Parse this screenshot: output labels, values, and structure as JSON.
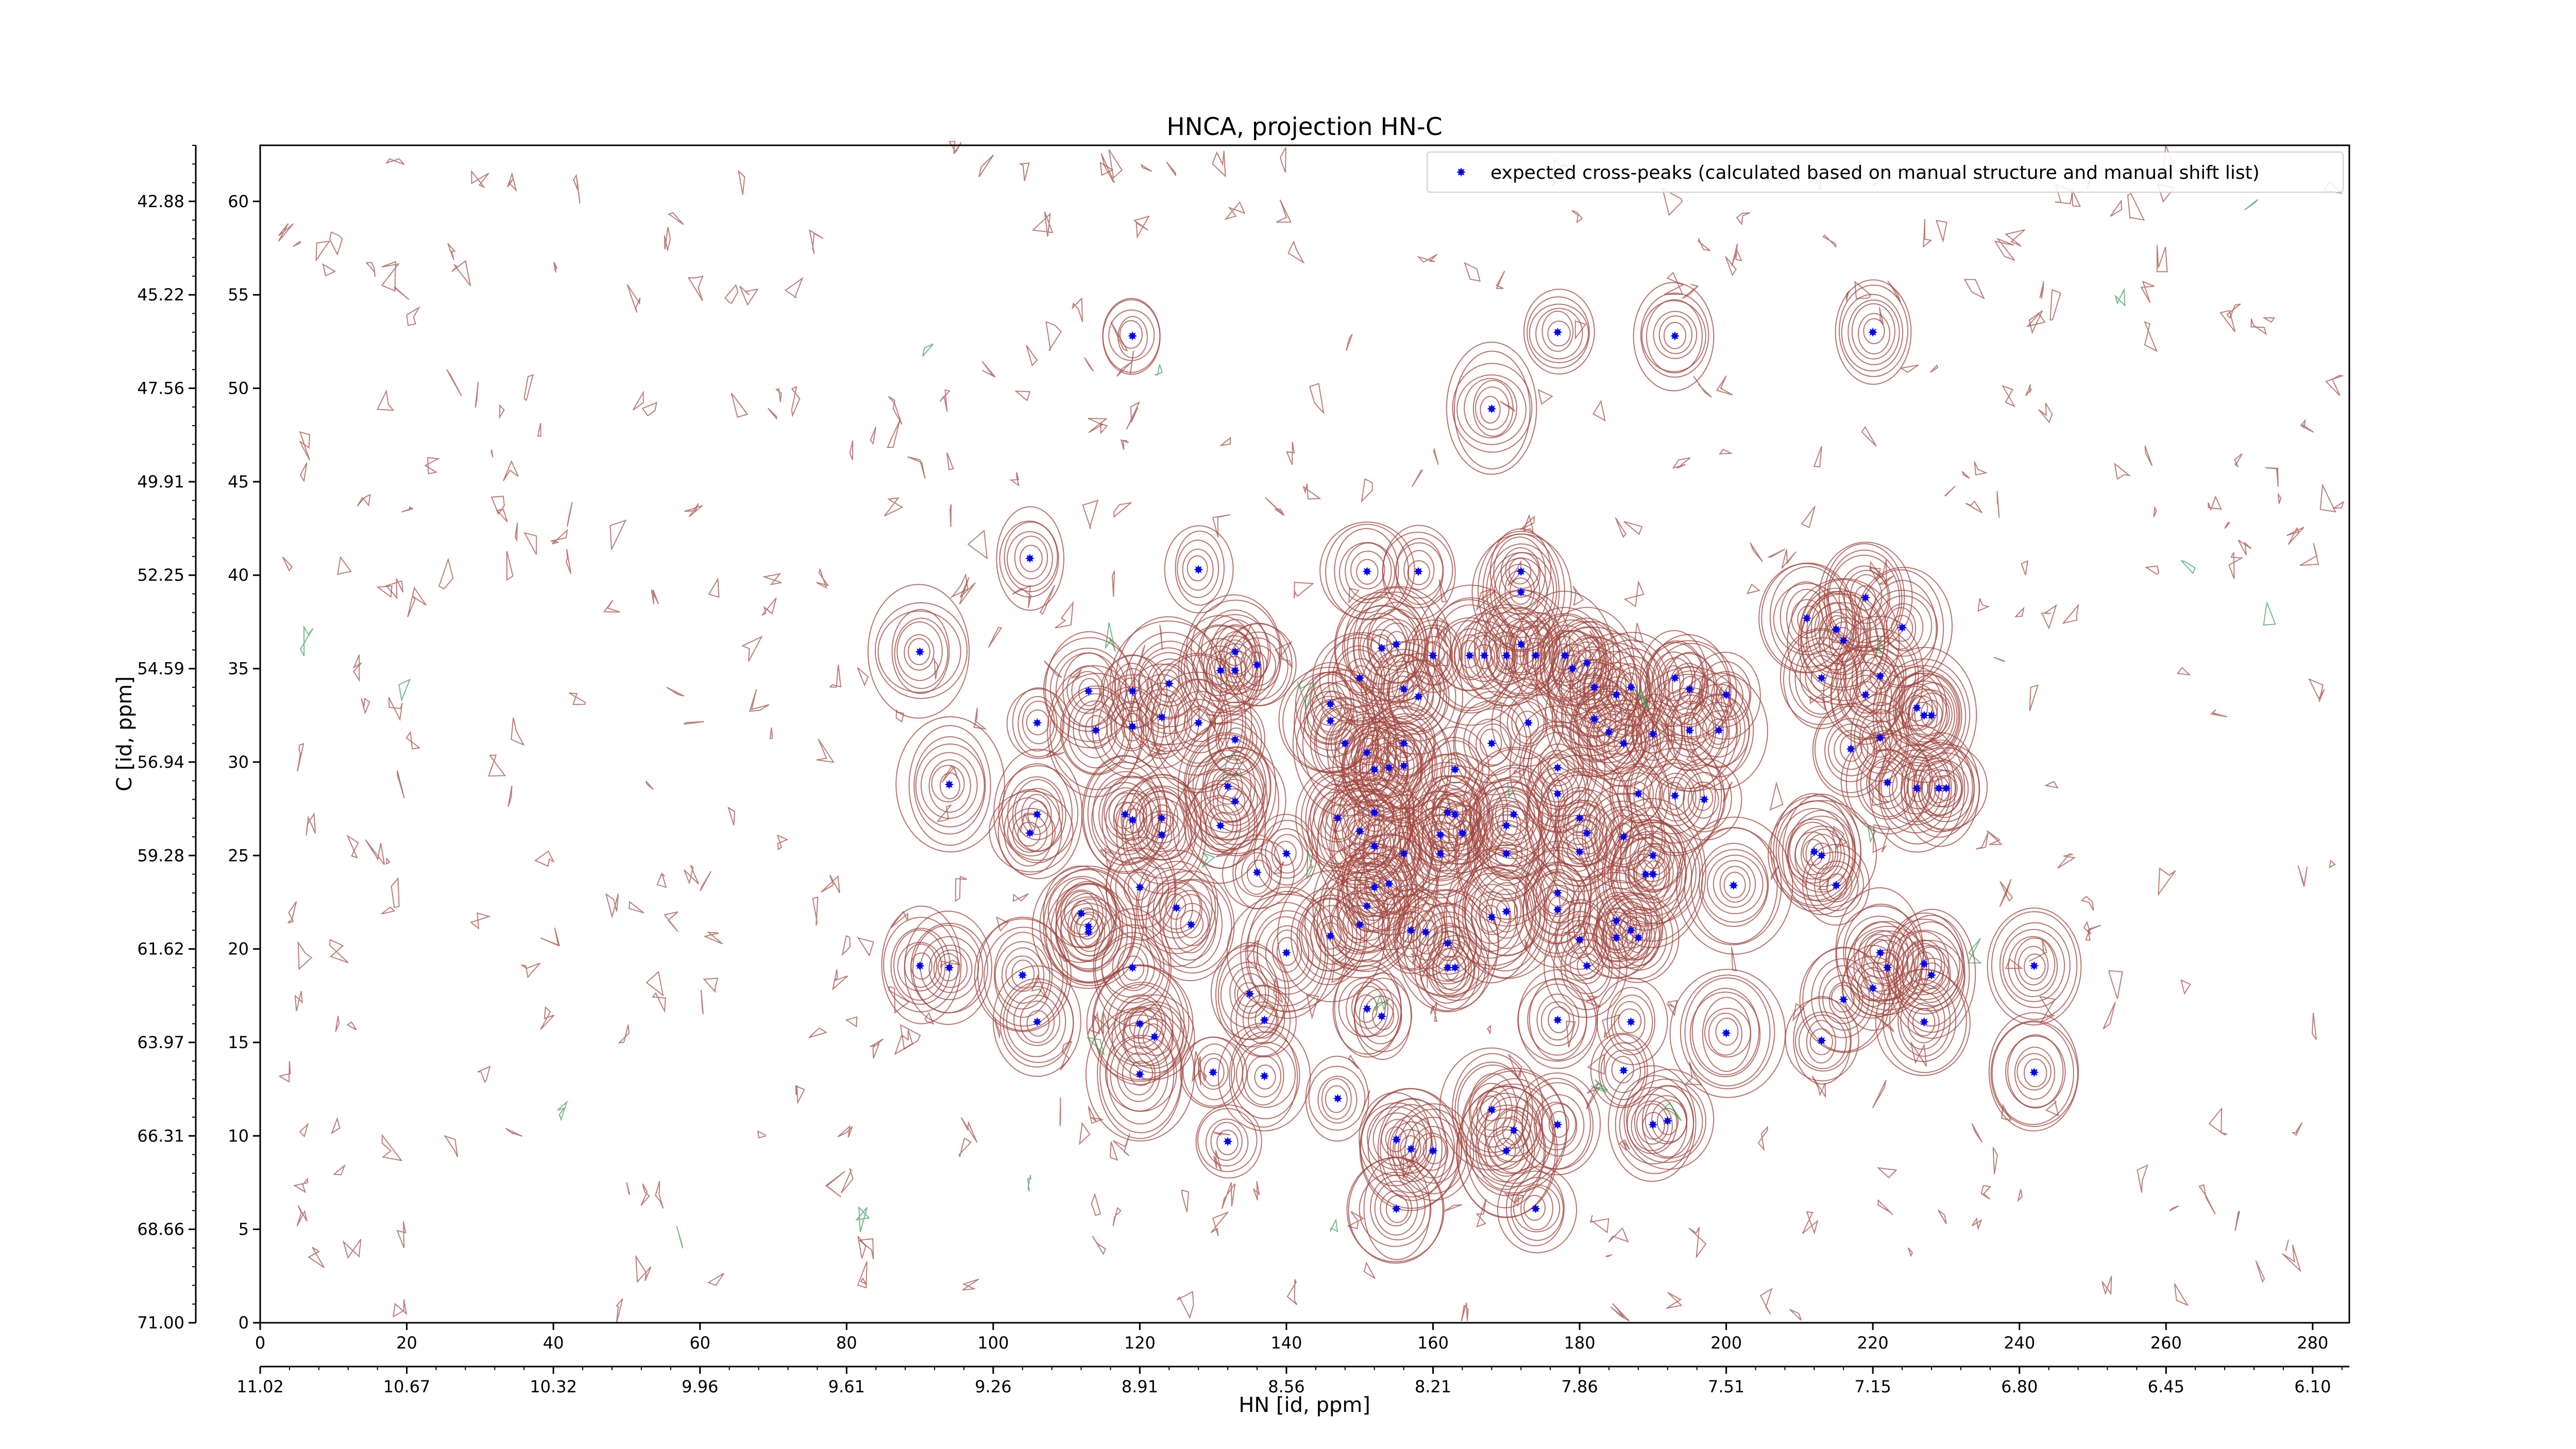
{
  "chart_data": {
    "type": "scatter",
    "title": "HNCA, projection HN-C",
    "xlabel": "HN [id, ppm]",
    "ylabel": "C [id, ppm]",
    "xlim": [
      0,
      285
    ],
    "ylim": [
      0,
      63
    ],
    "x_ticks_index": [
      "0",
      "20",
      "40",
      "60",
      "80",
      "100",
      "120",
      "140",
      "160",
      "180",
      "200",
      "220",
      "240",
      "260",
      "280"
    ],
    "y_ticks_index": [
      "0",
      "5",
      "10",
      "15",
      "20",
      "25",
      "30",
      "35",
      "40",
      "45",
      "50",
      "55",
      "60"
    ],
    "x_ticks_ppm": [
      "11.02",
      "10.67",
      "10.32",
      "9.96",
      "9.61",
      "9.26",
      "8.91",
      "8.56",
      "8.21",
      "7.86",
      "7.51",
      "7.15",
      "6.80",
      "6.45",
      "6.10"
    ],
    "y_ticks_ppm": [
      "71.00",
      "68.66",
      "66.31",
      "63.97",
      "61.62",
      "59.28",
      "56.94",
      "54.59",
      "52.25",
      "49.91",
      "47.56",
      "45.22",
      "42.88"
    ],
    "legend_position": "top-right",
    "grid": false,
    "colors": {
      "peak_marker": "#0000ff",
      "contour_positive": "#a0443c",
      "contour_negative": "#3a9a5a"
    },
    "series": [
      {
        "name": "expected cross-peaks (calculated based on manual structure and manual shift list)",
        "points": [
          [
            119,
            52.8
          ],
          [
            177,
            53.0
          ],
          [
            193,
            52.8
          ],
          [
            220,
            53.0
          ],
          [
            168,
            48.9
          ],
          [
            105,
            40.9
          ],
          [
            128,
            40.3
          ],
          [
            151,
            40.2
          ],
          [
            158,
            40.2
          ],
          [
            172,
            40.2
          ],
          [
            172,
            39.1
          ],
          [
            90,
            35.9
          ],
          [
            133,
            35.9
          ],
          [
            131,
            34.9
          ],
          [
            133,
            34.9
          ],
          [
            136,
            35.2
          ],
          [
            113,
            33.8
          ],
          [
            119,
            33.8
          ],
          [
            124,
            34.2
          ],
          [
            146,
            33.1
          ],
          [
            150,
            34.5
          ],
          [
            153,
            36.1
          ],
          [
            155,
            36.3
          ],
          [
            156,
            33.9
          ],
          [
            158,
            33.5
          ],
          [
            160,
            35.7
          ],
          [
            165,
            35.7
          ],
          [
            167,
            35.7
          ],
          [
            170,
            35.7
          ],
          [
            172,
            36.3
          ],
          [
            174,
            35.7
          ],
          [
            178,
            35.7
          ],
          [
            179,
            35.0
          ],
          [
            181,
            35.3
          ],
          [
            182,
            34.0
          ],
          [
            185,
            33.6
          ],
          [
            187,
            34.0
          ],
          [
            193,
            34.5
          ],
          [
            195,
            33.9
          ],
          [
            200,
            33.6
          ],
          [
            106,
            32.1
          ],
          [
            114,
            31.7
          ],
          [
            119,
            31.9
          ],
          [
            123,
            32.4
          ],
          [
            128,
            32.1
          ],
          [
            133,
            31.2
          ],
          [
            146,
            32.2
          ],
          [
            148,
            31.0
          ],
          [
            151,
            30.5
          ],
          [
            152,
            29.6
          ],
          [
            154,
            29.7
          ],
          [
            156,
            31.0
          ],
          [
            156,
            29.8
          ],
          [
            163,
            29.6
          ],
          [
            168,
            31.0
          ],
          [
            173,
            32.1
          ],
          [
            177,
            29.7
          ],
          [
            182,
            32.3
          ],
          [
            184,
            31.6
          ],
          [
            186,
            31.0
          ],
          [
            190,
            31.5
          ],
          [
            195,
            31.7
          ],
          [
            199,
            31.7
          ],
          [
            94,
            28.8
          ],
          [
            132,
            28.7
          ],
          [
            133,
            27.9
          ],
          [
            163,
            27.2
          ],
          [
            177,
            28.3
          ],
          [
            188,
            28.3
          ],
          [
            193,
            28.2
          ],
          [
            197,
            28.0
          ],
          [
            106,
            27.2
          ],
          [
            105,
            26.2
          ],
          [
            118,
            27.2
          ],
          [
            119,
            26.9
          ],
          [
            123,
            27.0
          ],
          [
            123,
            26.1
          ],
          [
            147,
            27.0
          ],
          [
            150,
            26.3
          ],
          [
            152,
            27.3
          ],
          [
            161,
            26.1
          ],
          [
            162,
            27.3
          ],
          [
            164,
            26.2
          ],
          [
            170,
            26.6
          ],
          [
            171,
            27.2
          ],
          [
            180,
            27.0
          ],
          [
            181,
            26.2
          ],
          [
            186,
            26.0
          ],
          [
            131,
            26.6
          ],
          [
            140,
            25.1
          ],
          [
            152,
            25.5
          ],
          [
            156,
            25.1
          ],
          [
            161,
            25.1
          ],
          [
            170,
            25.1
          ],
          [
            180,
            25.2
          ],
          [
            190,
            25.0
          ],
          [
            212,
            25.2
          ],
          [
            213,
            25.0
          ],
          [
            136,
            24.1
          ],
          [
            152,
            23.3
          ],
          [
            154,
            23.5
          ],
          [
            189,
            24.0
          ],
          [
            190,
            24.0
          ],
          [
            201,
            23.4
          ],
          [
            112,
            21.9
          ],
          [
            113,
            21.2
          ],
          [
            113,
            20.9
          ],
          [
            120,
            23.3
          ],
          [
            125,
            22.2
          ],
          [
            127,
            21.3
          ],
          [
            150,
            21.3
          ],
          [
            151,
            22.3
          ],
          [
            157,
            21.0
          ],
          [
            159,
            20.9
          ],
          [
            162,
            20.3
          ],
          [
            162,
            19.0
          ],
          [
            163,
            19.0
          ],
          [
            168,
            21.7
          ],
          [
            170,
            22.0
          ],
          [
            177,
            23.0
          ],
          [
            177,
            22.1
          ],
          [
            180,
            20.5
          ],
          [
            181,
            19.1
          ],
          [
            185,
            20.6
          ],
          [
            185,
            21.5
          ],
          [
            187,
            21.0
          ],
          [
            188,
            20.6
          ],
          [
            90,
            19.1
          ],
          [
            94,
            19.0
          ],
          [
            104,
            18.6
          ],
          [
            119,
            19.0
          ],
          [
            140,
            19.8
          ],
          [
            146,
            20.7
          ],
          [
            215,
            23.4
          ],
          [
            221,
            19.8
          ],
          [
            222,
            19.0
          ],
          [
            227,
            19.2
          ],
          [
            228,
            18.6
          ],
          [
            242,
            19.1
          ],
          [
            106,
            16.1
          ],
          [
            120,
            16.0
          ],
          [
            122,
            15.3
          ],
          [
            135,
            17.6
          ],
          [
            137,
            16.2
          ],
          [
            151,
            16.8
          ],
          [
            153,
            16.4
          ],
          [
            177,
            16.2
          ],
          [
            187,
            16.1
          ],
          [
            200,
            15.5
          ],
          [
            213,
            15.1
          ],
          [
            216,
            17.3
          ],
          [
            220,
            17.9
          ],
          [
            227,
            16.1
          ],
          [
            120,
            13.3
          ],
          [
            130,
            13.4
          ],
          [
            137,
            13.2
          ],
          [
            147,
            12.0
          ],
          [
            168,
            11.4
          ],
          [
            170,
            9.2
          ],
          [
            171,
            10.3
          ],
          [
            177,
            10.6
          ],
          [
            186,
            13.5
          ],
          [
            190,
            10.6
          ],
          [
            192,
            10.8
          ],
          [
            242,
            13.4
          ],
          [
            132,
            9.7
          ],
          [
            155,
            9.8
          ],
          [
            157,
            9.3
          ],
          [
            160,
            9.2
          ],
          [
            155,
            6.1
          ],
          [
            174,
            6.1
          ],
          [
            211,
            37.7
          ],
          [
            215,
            37.1
          ],
          [
            216,
            36.5
          ],
          [
            219,
            38.8
          ],
          [
            221,
            34.6
          ],
          [
            224,
            37.2
          ],
          [
            213,
            34.5
          ],
          [
            219,
            33.6
          ],
          [
            221,
            31.3
          ],
          [
            226,
            32.9
          ],
          [
            227,
            32.5
          ],
          [
            228,
            32.5
          ],
          [
            217,
            30.7
          ],
          [
            222,
            28.9
          ],
          [
            226,
            28.6
          ],
          [
            229,
            28.6
          ],
          [
            230,
            28.6
          ]
        ]
      }
    ]
  }
}
